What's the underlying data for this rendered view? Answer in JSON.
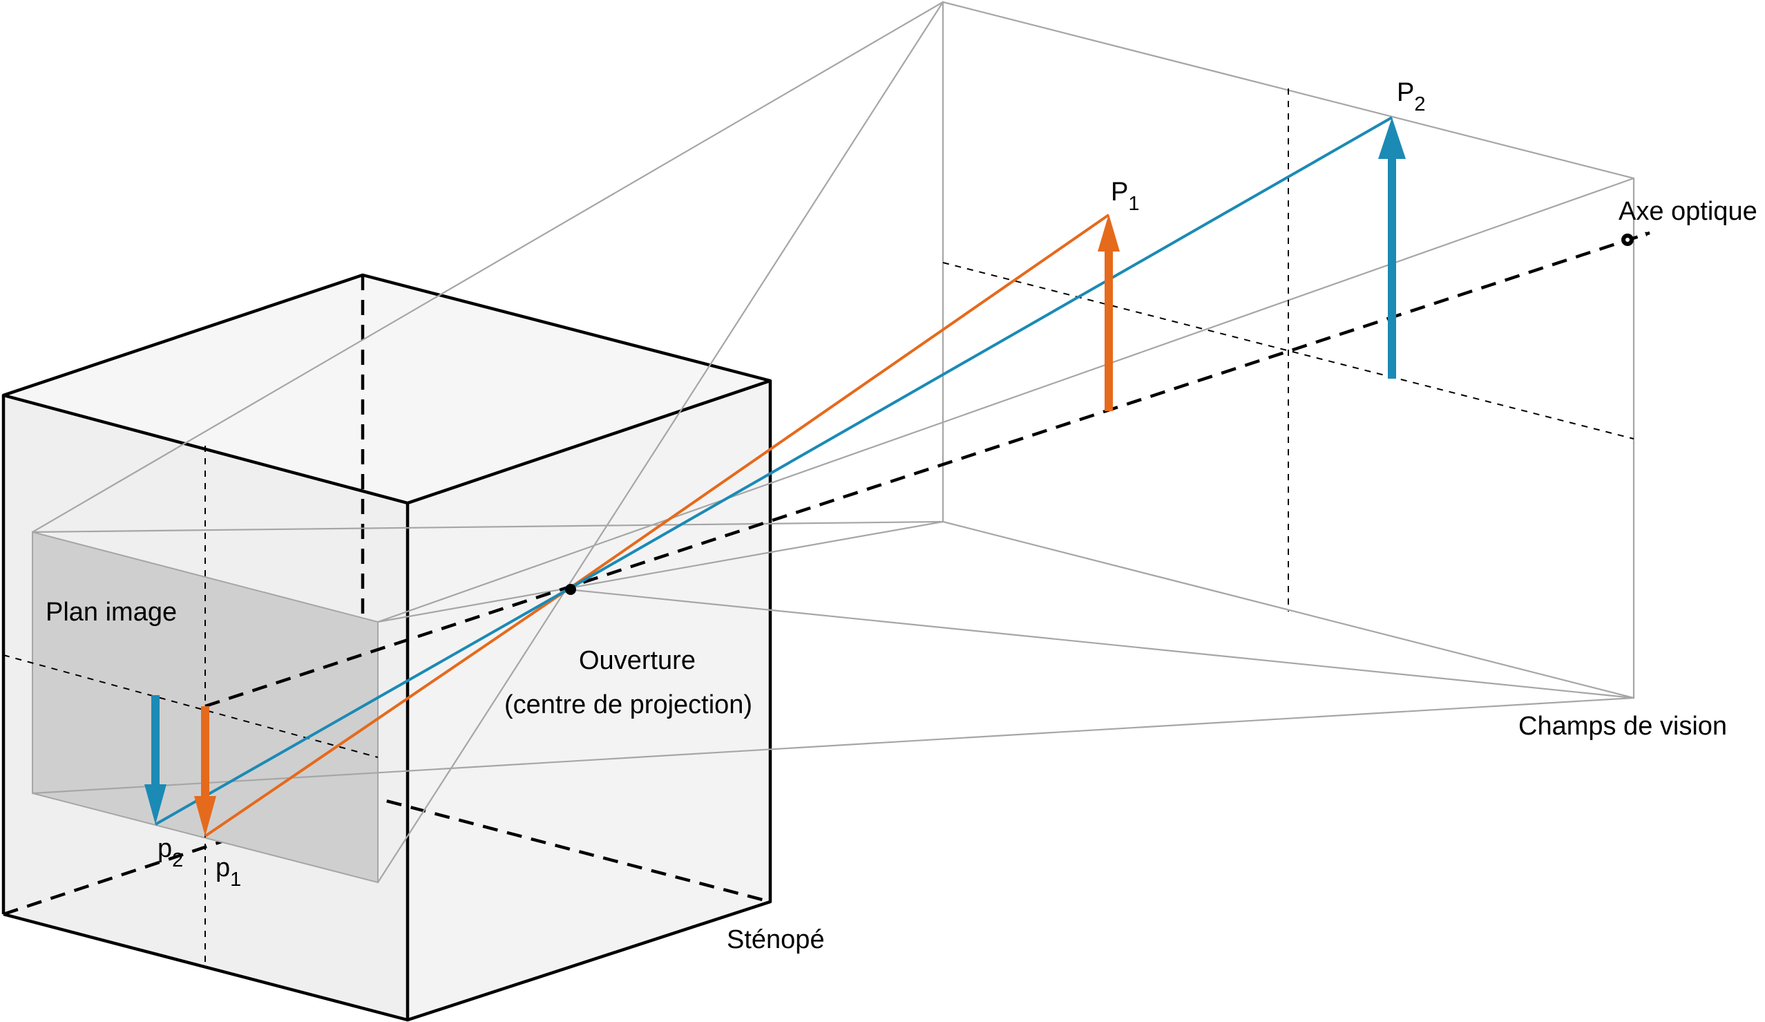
{
  "labels": {
    "plan_image": "Plan image",
    "ouverture_line1": "Ouverture",
    "ouverture_line2": "(centre de projection)",
    "stenope": "Sténopé",
    "champs_de_vision": "Champs de vision",
    "axe_optique": "Axe optique",
    "P1_base": "P",
    "P1_sub": "1",
    "P2_base": "P",
    "P2_sub": "2",
    "p1_base": "p",
    "p1_sub": "1",
    "p2_base": "p",
    "p2_sub": "2"
  },
  "colors": {
    "orange": "#e56a1c",
    "blue": "#1b8ab5",
    "box_face": "#efefef",
    "image_plane": "#cfcfcf",
    "gray_line": "#a6a6a6"
  }
}
